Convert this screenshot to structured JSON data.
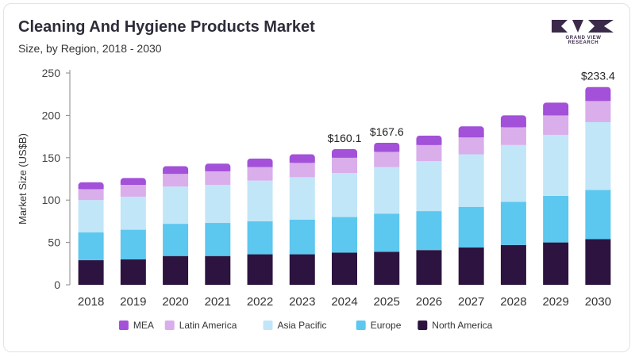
{
  "header": {
    "title": "Cleaning And Hygiene Products Market",
    "subtitle": "Size, by Region, 2018 - 2030"
  },
  "logo": {
    "text": "GRAND VIEW RESEARCH",
    "color": "#3b2a4a"
  },
  "colors": {
    "MEA": "#a251d8",
    "Latin America": "#d9aeea",
    "Asia Pacific": "#c1e6f7",
    "Europe": "#5cc7ef",
    "North America": "#2d1440"
  },
  "chart_data": {
    "type": "bar",
    "stacked": true,
    "categories": [
      "2018",
      "2019",
      "2020",
      "2021",
      "2022",
      "2023",
      "2024",
      "2025",
      "2026",
      "2027",
      "2028",
      "2029",
      "2030"
    ],
    "series": [
      {
        "name": "North America",
        "values": [
          29,
          30,
          34,
          34,
          36,
          36,
          38,
          39,
          41,
          44,
          47,
          50,
          54
        ]
      },
      {
        "name": "Europe",
        "values": [
          33,
          35,
          38,
          39,
          39,
          41,
          42,
          45,
          46,
          48,
          51,
          55,
          58
        ]
      },
      {
        "name": "Asia Pacific",
        "values": [
          38,
          39,
          44,
          45,
          48,
          50,
          52,
          55,
          59,
          62,
          67,
          72,
          80
        ]
      },
      {
        "name": "Latin America",
        "values": [
          13,
          14,
          15,
          16,
          16,
          17,
          18,
          18,
          19,
          20,
          21,
          23,
          25
        ]
      },
      {
        "name": "MEA",
        "values": [
          8,
          8,
          9,
          9,
          10,
          10,
          10.1,
          10.6,
          11,
          13,
          14,
          15,
          16.4
        ]
      }
    ],
    "data_labels": [
      {
        "category": "2024",
        "text": "$160.1"
      },
      {
        "category": "2025",
        "text": "$167.6"
      },
      {
        "category": "2030",
        "text": "$233.4"
      }
    ],
    "legend_order": [
      "MEA",
      "Latin America",
      "Asia Pacific",
      "Europe",
      "North America"
    ],
    "legend_position": "bottom",
    "ylabel": "Market Size (US$B)",
    "xlabel": "",
    "ylim": [
      0,
      250
    ],
    "yticks": [
      0,
      50,
      100,
      150,
      200,
      250
    ],
    "grid": false
  }
}
